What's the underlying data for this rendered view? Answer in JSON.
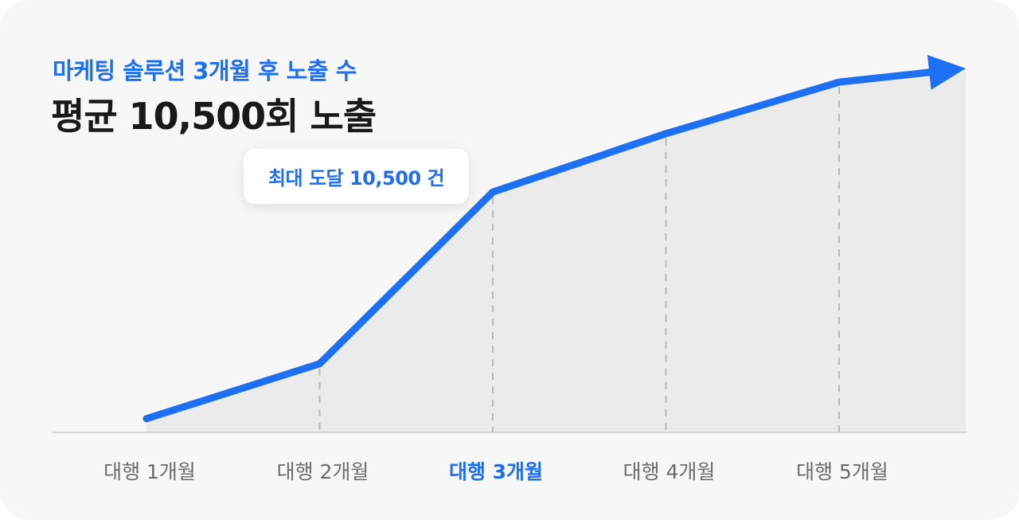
{
  "header": {
    "subtitle": "마케팅 솔루션 3개월 후 노출 수",
    "title": "평균 10,500회 노출"
  },
  "callout": {
    "text": "최대 도달 10,500 건"
  },
  "colors": {
    "accent": "#1f6ff2",
    "area": "#ebebeb",
    "baseline": "#d6d6d6",
    "guide": "#b9b9b9"
  },
  "chart_data": {
    "type": "area",
    "categories": [
      "대행 1개월",
      "대행 2개월",
      "대행 3개월",
      "대행 4개월",
      "대행 5개월"
    ],
    "highlight_index": 2,
    "values": [
      0.2,
      1.0,
      3.5,
      4.35,
      5.1
    ],
    "end_value": 5.3,
    "ylim": [
      0,
      5.6
    ],
    "grid": false,
    "legend": "none",
    "arrow_end": true
  }
}
